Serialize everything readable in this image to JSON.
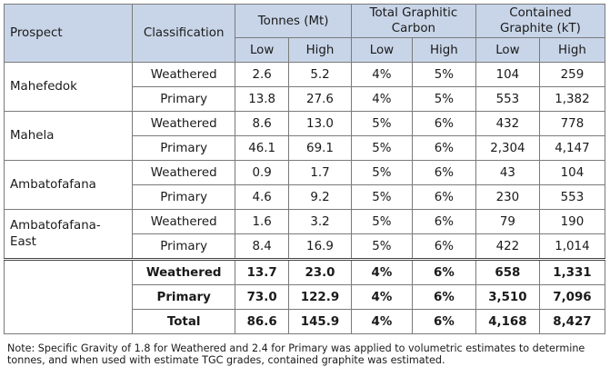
{
  "headers": {
    "prospect": "Prospect",
    "classification": "Classification",
    "tonnes": "Tonnes (Mt)",
    "tgc": "Total Graphitic Carbon",
    "contained": "Contained Graphite (kT)",
    "low": "Low",
    "high": "High"
  },
  "prospects": [
    {
      "name": "Mahefedok",
      "rows": [
        {
          "classification": "Weathered",
          "tonnes_low": "2.6",
          "tonnes_high": "5.2",
          "tgc_low": "4%",
          "tgc_high": "5%",
          "graphite_low": "104",
          "graphite_high": "259"
        },
        {
          "classification": "Primary",
          "tonnes_low": "13.8",
          "tonnes_high": "27.6",
          "tgc_low": "4%",
          "tgc_high": "5%",
          "graphite_low": "553",
          "graphite_high": "1,382"
        }
      ]
    },
    {
      "name": "Mahela",
      "rows": [
        {
          "classification": "Weathered",
          "tonnes_low": "8.6",
          "tonnes_high": "13.0",
          "tgc_low": "5%",
          "tgc_high": "6%",
          "graphite_low": "432",
          "graphite_high": "778"
        },
        {
          "classification": "Primary",
          "tonnes_low": "46.1",
          "tonnes_high": "69.1",
          "tgc_low": "5%",
          "tgc_high": "6%",
          "graphite_low": "2,304",
          "graphite_high": "4,147"
        }
      ]
    },
    {
      "name": "Ambatofafana",
      "rows": [
        {
          "classification": "Weathered",
          "tonnes_low": "0.9",
          "tonnes_high": "1.7",
          "tgc_low": "5%",
          "tgc_high": "6%",
          "graphite_low": "43",
          "graphite_high": "104"
        },
        {
          "classification": "Primary",
          "tonnes_low": "4.6",
          "tonnes_high": "9.2",
          "tgc_low": "5%",
          "tgc_high": "6%",
          "graphite_low": "230",
          "graphite_high": "553"
        }
      ]
    },
    {
      "name": "Ambatofafana-East",
      "rows": [
        {
          "classification": "Weathered",
          "tonnes_low": "1.6",
          "tonnes_high": "3.2",
          "tgc_low": "5%",
          "tgc_high": "6%",
          "graphite_low": "79",
          "graphite_high": "190"
        },
        {
          "classification": "Primary",
          "tonnes_low": "8.4",
          "tonnes_high": "16.9",
          "tgc_low": "5%",
          "tgc_high": "6%",
          "graphite_low": "422",
          "graphite_high": "1,014"
        }
      ]
    }
  ],
  "summary": [
    {
      "classification": "Weathered",
      "tonnes_low": "13.7",
      "tonnes_high": "23.0",
      "tgc_low": "4%",
      "tgc_high": "6%",
      "graphite_low": "658",
      "graphite_high": "1,331"
    },
    {
      "classification": "Primary",
      "tonnes_low": "73.0",
      "tonnes_high": "122.9",
      "tgc_low": "4%",
      "tgc_high": "6%",
      "graphite_low": "3,510",
      "graphite_high": "7,096"
    },
    {
      "classification": "Total",
      "tonnes_low": "86.6",
      "tonnes_high": "145.9",
      "tgc_low": "4%",
      "tgc_high": "6%",
      "graphite_low": "4,168",
      "graphite_high": "8,427"
    }
  ],
  "note": "Note: Specific Gravity of 1.8 for Weathered and 2.4 for Primary was applied to volumetric estimates to determine tonnes, and when used with estimate TGC grades, contained graphite was estimated.",
  "colors": {
    "header_bg": "#c8d5e8",
    "border": "#7a7a7a"
  }
}
